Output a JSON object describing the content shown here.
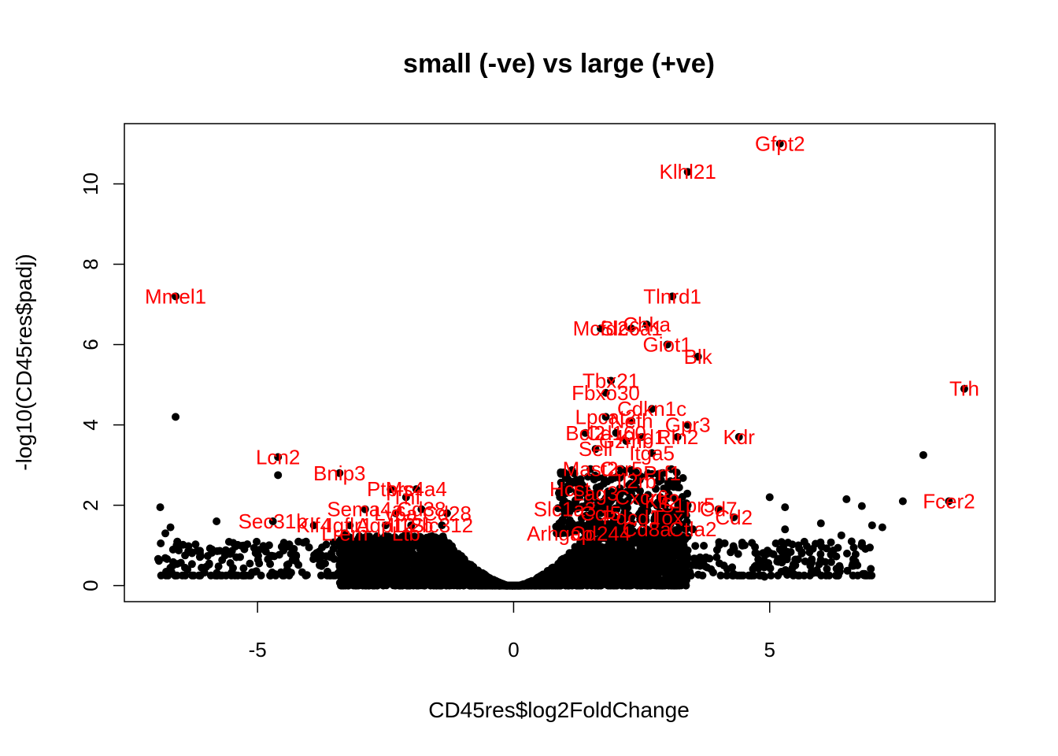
{
  "chart_data": {
    "type": "scatter",
    "title": "small (-ve) vs large (+ve)",
    "xlabel": "CD45res$log2FoldChange",
    "ylabel": "-log10(CD45res$padj)",
    "xlim": [
      -7.6,
      9.4
    ],
    "ylim": [
      -0.4,
      11.5
    ],
    "x_ticks": [
      -5,
      0,
      5
    ],
    "x_tick_labels": [
      "-5",
      "0",
      "5"
    ],
    "y_ticks": [
      0,
      2,
      4,
      6,
      8,
      10
    ],
    "y_tick_labels": [
      "0",
      "2",
      "4",
      "6",
      "8",
      "10"
    ],
    "grid": false,
    "legend": "none",
    "colors": {
      "points": "#000000",
      "labels": "#ff0000"
    },
    "labeled_points": [
      {
        "gene": "Gfpt2",
        "x": 5.2,
        "y": 11.0
      },
      {
        "gene": "Klhl21",
        "x": 3.4,
        "y": 10.3
      },
      {
        "gene": "Mmel1",
        "x": -6.6,
        "y": 7.2
      },
      {
        "gene": "Tlnrd1",
        "x": 3.1,
        "y": 7.2
      },
      {
        "gene": "Mcfd2",
        "x": 1.7,
        "y": 6.4
      },
      {
        "gene": "Chka",
        "x": 2.6,
        "y": 6.5
      },
      {
        "gene": "Slc6a1",
        "x": 2.3,
        "y": 6.4
      },
      {
        "gene": "Giot1",
        "x": 3.0,
        "y": 6.0
      },
      {
        "gene": "Blk",
        "x": 3.6,
        "y": 5.7
      },
      {
        "gene": "Tbx21",
        "x": 1.9,
        "y": 5.1
      },
      {
        "gene": "Fbxo30",
        "x": 1.8,
        "y": 4.8
      },
      {
        "gene": "Trh",
        "x": 8.8,
        "y": 4.9
      },
      {
        "gene": "Cdkn1c",
        "x": 2.7,
        "y": 4.4
      },
      {
        "gene": "Lpcat2",
        "x": 1.8,
        "y": 4.2
      },
      {
        "gene": "Nefh",
        "x": 2.3,
        "y": 4.1
      },
      {
        "gene": "Gpr3",
        "x": 3.4,
        "y": 4.0
      },
      {
        "gene": "Bcl2",
        "x": 1.4,
        "y": 3.8
      },
      {
        "gene": "Cd160",
        "x": 2.0,
        "y": 3.8
      },
      {
        "gene": "Klrd1",
        "x": 2.5,
        "y": 3.7
      },
      {
        "gene": "Gzmb",
        "x": 2.2,
        "y": 3.6
      },
      {
        "gene": "Rln2",
        "x": 3.2,
        "y": 3.7
      },
      {
        "gene": "Kdr",
        "x": 4.4,
        "y": 3.7
      },
      {
        "gene": "Sell",
        "x": 1.6,
        "y": 3.4
      },
      {
        "gene": "Itga5",
        "x": 2.7,
        "y": 3.3
      },
      {
        "gene": "Lcn2",
        "x": -4.6,
        "y": 3.2
      },
      {
        "gene": "Bnip3",
        "x": -3.4,
        "y": 2.8
      },
      {
        "gene": "Mast2",
        "x": 1.5,
        "y": 2.9
      },
      {
        "gene": "Ccr5",
        "x": 2.1,
        "y": 2.9
      },
      {
        "gene": "Prf1",
        "x": 2.9,
        "y": 2.8
      },
      {
        "gene": "Ptprc",
        "x": -2.4,
        "y": 2.4
      },
      {
        "gene": "Ms4a4",
        "x": -1.9,
        "y": 2.4
      },
      {
        "gene": "Tnf",
        "x": -2.1,
        "y": 2.2
      },
      {
        "gene": "Il2rb",
        "x": 2.4,
        "y": 2.6
      },
      {
        "gene": "Hcst",
        "x": 1.1,
        "y": 2.4
      },
      {
        "gene": "Lag3",
        "x": 1.6,
        "y": 2.3
      },
      {
        "gene": "Cxcr6",
        "x": 2.5,
        "y": 2.2
      },
      {
        "gene": "Klf2",
        "x": 2.9,
        "y": 2.1
      },
      {
        "gene": "S1pr5",
        "x": 3.4,
        "y": 2.0
      },
      {
        "gene": "Sema4a",
        "x": -2.9,
        "y": 1.9
      },
      {
        "gene": "Cd38",
        "x": -1.8,
        "y": 1.9
      },
      {
        "gene": "Ly6a",
        "x": -2.3,
        "y": 1.8
      },
      {
        "gene": "Cd28",
        "x": -1.3,
        "y": 1.8
      },
      {
        "gene": "Slc1a3",
        "x": 1.0,
        "y": 1.9
      },
      {
        "gene": "Ccl5",
        "x": 1.7,
        "y": 1.8
      },
      {
        "gene": "Pdcd1",
        "x": 2.3,
        "y": 1.7
      },
      {
        "gene": "Tox",
        "x": 3.0,
        "y": 1.7
      },
      {
        "gene": "Cd7",
        "x": 4.0,
        "y": 1.9
      },
      {
        "gene": "Cd2",
        "x": 4.3,
        "y": 1.7
      },
      {
        "gene": "Sec31b",
        "x": -4.7,
        "y": 1.6
      },
      {
        "gene": "Klf4",
        "x": -3.9,
        "y": 1.5
      },
      {
        "gene": "Igflr1",
        "x": -3.2,
        "y": 1.5
      },
      {
        "gene": "Aqp12",
        "x": -2.5,
        "y": 1.5
      },
      {
        "gene": "Il12b",
        "x": -2.0,
        "y": 1.5
      },
      {
        "gene": "Slc312",
        "x": -1.4,
        "y": 1.5
      },
      {
        "gene": "Lrem",
        "x": -3.3,
        "y": 1.3
      },
      {
        "gene": "Ltb",
        "x": -2.1,
        "y": 1.3
      },
      {
        "gene": "Arhgap",
        "x": 0.9,
        "y": 1.3
      },
      {
        "gene": "Cd244",
        "x": 1.7,
        "y": 1.3
      },
      {
        "gene": "Cd8a",
        "x": 2.6,
        "y": 1.4
      },
      {
        "gene": "Ctla2",
        "x": 3.5,
        "y": 1.4
      },
      {
        "gene": "Fcer2",
        "x": 8.5,
        "y": 2.1
      }
    ],
    "extra_points": [
      {
        "x": -6.6,
        "y": 4.2
      },
      {
        "x": -4.6,
        "y": 2.75
      },
      {
        "x": 8.0,
        "y": 3.25
      },
      {
        "x": 7.6,
        "y": 2.1
      },
      {
        "x": 6.5,
        "y": 2.15
      },
      {
        "x": 6.8,
        "y": 1.98
      },
      {
        "x": 5.0,
        "y": 2.2
      },
      {
        "x": 5.3,
        "y": 1.95
      },
      {
        "x": -6.9,
        "y": 1.95
      },
      {
        "x": -6.8,
        "y": 1.3
      },
      {
        "x": -6.7,
        "y": 1.45
      },
      {
        "x": -5.8,
        "y": 1.6
      },
      {
        "x": 7.0,
        "y": 1.5
      },
      {
        "x": 7.2,
        "y": 1.45
      },
      {
        "x": 5.3,
        "y": 1.4
      },
      {
        "x": 6.0,
        "y": 1.55
      },
      {
        "x": 6.4,
        "y": 1.25
      },
      {
        "x": 4.9,
        "y": 0.22
      },
      {
        "x": 5.5,
        "y": 0.65
      },
      {
        "x": 6.6,
        "y": 1.1
      },
      {
        "x": 5.2,
        "y": 0.9
      }
    ]
  }
}
